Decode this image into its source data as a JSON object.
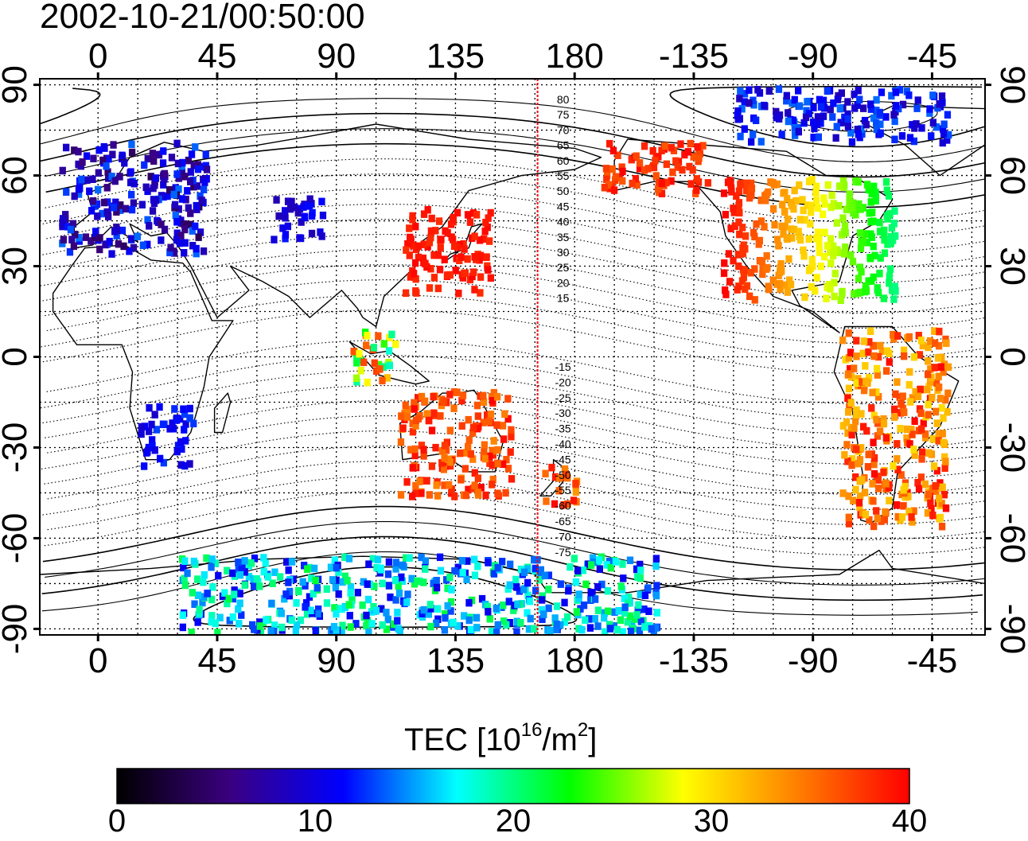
{
  "title": "2002-10-21/00:50:00",
  "axes": {
    "x_ticks": [
      "0",
      "45",
      "90",
      "135",
      "180",
      "-135",
      "-90",
      "-45"
    ],
    "y_ticks": [
      "90",
      "60",
      "30",
      "0",
      "-30",
      "-60",
      "-90"
    ]
  },
  "map": {
    "projection": "equirectangular",
    "lon_range": [
      -22,
      335
    ],
    "lat_range": [
      -92,
      92
    ],
    "grid": true,
    "marker_meridian_lon": 166,
    "marker_color": "#ff0000",
    "contour_labels_north": [
      "80",
      "75",
      "70",
      "65",
      "60",
      "55",
      "50",
      "45",
      "40",
      "35",
      "30",
      "25",
      "20",
      "15"
    ],
    "contour_labels_south": [
      "-15",
      "-20",
      "-25",
      "-30",
      "-35",
      "-40",
      "-45",
      "-50",
      "-55",
      "-60",
      "-65",
      "-70",
      "-75"
    ]
  },
  "colorbar": {
    "title_main": "TEC  [10",
    "title_exp": "16",
    "title_unit": "/m",
    "title_unit_exp": "2",
    "title_close": "]",
    "min": 0,
    "max": 40,
    "ticks": [
      "0",
      "10",
      "20",
      "30",
      "40"
    ],
    "colormap": [
      "#000000",
      "#3a0080",
      "#0000ff",
      "#00ffff",
      "#00ff00",
      "#ffff00",
      "#ff8000",
      "#ff0000"
    ]
  },
  "tec_regions": [
    {
      "region": "Europe",
      "lon": [
        -15,
        40
      ],
      "lat": [
        35,
        72
      ],
      "tec_min": 4,
      "tec_max": 14
    },
    {
      "region": "Central Asia",
      "lon": [
        65,
        85
      ],
      "lat": [
        40,
        55
      ],
      "tec_min": 8,
      "tec_max": 12
    },
    {
      "region": "East Asia",
      "lon": [
        115,
        148
      ],
      "lat": [
        22,
        50
      ],
      "tec_min": 38,
      "tec_max": 40
    },
    {
      "region": "Southeast Asia",
      "lon": [
        95,
        112
      ],
      "lat": [
        -8,
        10
      ],
      "tec_min": 18,
      "tec_max": 38
    },
    {
      "region": "Australia",
      "lon": [
        113,
        155
      ],
      "lat": [
        -45,
        -10
      ],
      "tec_min": 34,
      "tec_max": 40
    },
    {
      "region": "New Zealand",
      "lon": [
        166,
        180
      ],
      "lat": [
        -48,
        -35
      ],
      "tec_min": 33,
      "tec_max": 40
    },
    {
      "region": "Alaska",
      "lon": [
        190,
        230
      ],
      "lat": [
        55,
        72
      ],
      "tec_min": 36,
      "tec_max": 40
    },
    {
      "region": "North America",
      "lon": [
        235,
        300
      ],
      "lat": [
        20,
        60
      ],
      "tec_min": 20,
      "tec_max": 40
    },
    {
      "region": "Arctic Canada",
      "lon": [
        240,
        320
      ],
      "lat": [
        72,
        90
      ],
      "tec_min": 8,
      "tec_max": 14
    },
    {
      "region": "South America",
      "lon": [
        280,
        320
      ],
      "lat": [
        -55,
        10
      ],
      "tec_min": 30,
      "tec_max": 40
    },
    {
      "region": "Southern Africa",
      "lon": [
        15,
        35
      ],
      "lat": [
        -35,
        -15
      ],
      "tec_min": 9,
      "tec_max": 13
    },
    {
      "region": "Antarctica",
      "lon": [
        30,
        210
      ],
      "lat": [
        -90,
        -65
      ],
      "tec_min": 10,
      "tec_max": 22
    }
  ]
}
